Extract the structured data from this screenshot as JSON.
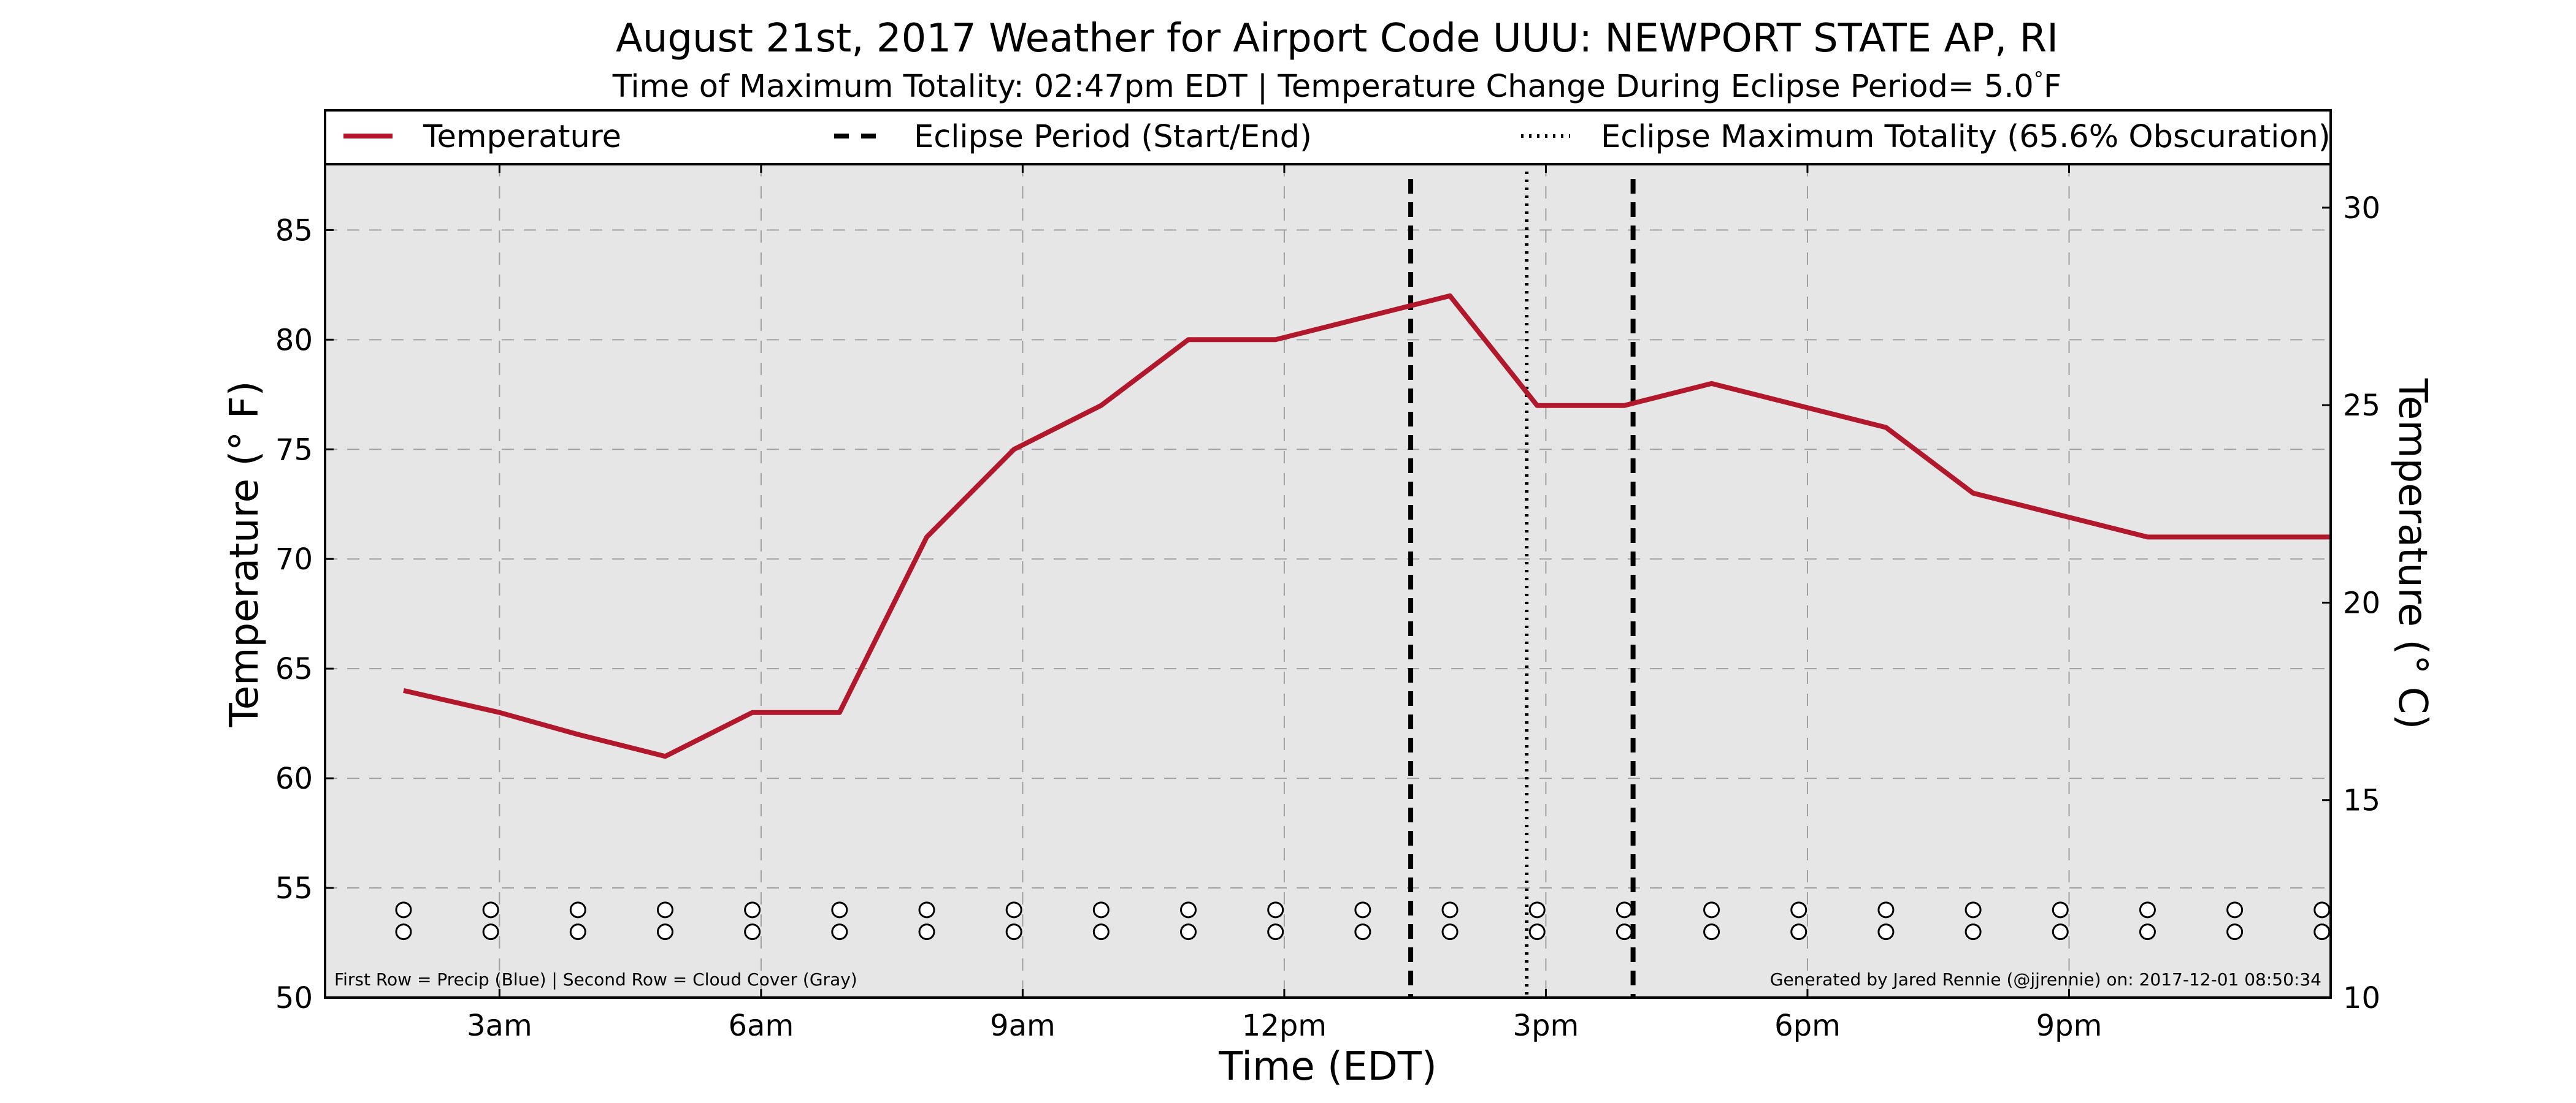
{
  "chart_data": {
    "type": "line",
    "title": "August 21st, 2017 Weather for Airport Code UUU: NEWPORT STATE AP, RI",
    "subtitle": "Time of Maximum Totality: 02:47pm EDT | Temperature Change During Eclipse Period= 5.0$^\\circ$F",
    "subtitle_parts": {
      "before": "Time of Maximum Totality: 02:47pm EDT | Temperature Change During Eclipse Period= 5.0",
      "degree": "°",
      "after": "F"
    },
    "xlabel": "Time (EDT)",
    "ylabel_left": "Temperature ($^\\circ$F)",
    "ylabel_left_display": "Temperature (° F)",
    "ylabel_right_display": "Temperature (° C)",
    "x_unit": "hours since 00:00 EDT, Aug 21 2017",
    "xlim": [
      0.0,
      23.0
    ],
    "ylim_left": [
      50,
      88
    ],
    "ylim_right": [
      10,
      31.1
    ],
    "x_ticks": [
      {
        "value": 2,
        "label": "3am"
      },
      {
        "value": 5,
        "label": "6am"
      },
      {
        "value": 8,
        "label": "9am"
      },
      {
        "value": 11,
        "label": "12pm"
      },
      {
        "value": 14,
        "label": "3pm"
      },
      {
        "value": 17,
        "label": "6pm"
      },
      {
        "value": 20,
        "label": "9pm"
      }
    ],
    "y_ticks_left": [
      50,
      55,
      60,
      65,
      70,
      75,
      80,
      85
    ],
    "y_ticks_right": [
      10,
      15,
      20,
      25,
      30
    ],
    "grid": true,
    "legend": {
      "placement": "top",
      "entries": [
        {
          "label": "Temperature",
          "style": "solid",
          "color": "#b2182b"
        },
        {
          "label": "Eclipse Period (Start/End)",
          "style": "dashed",
          "color": "#000000"
        },
        {
          "label": "Eclipse Maximum Totality (65.6% Obscuration)",
          "style": "dotted",
          "color": "#000000"
        }
      ]
    },
    "series": [
      {
        "name": "Temperature",
        "color": "#b2182b",
        "x": [
          0.9,
          2.0,
          2.9,
          3.9,
          4.9,
          5.9,
          6.9,
          7.9,
          8.9,
          9.9,
          10.9,
          11.9,
          12.9,
          13.9,
          14.9,
          15.9,
          16.9,
          17.9,
          18.9,
          19.9,
          20.9,
          21.9,
          23.0
        ],
        "y": [
          64,
          63,
          62,
          61,
          63,
          63,
          71,
          75,
          77,
          80,
          80,
          81,
          82,
          77,
          77,
          78,
          77,
          76,
          73,
          72,
          71,
          71,
          71
        ]
      }
    ],
    "eclipse_start_x": 12.45,
    "eclipse_end_x": 15.0,
    "eclipse_max_x": 13.78,
    "precip_row_y": 54,
    "cloud_row_y": 53,
    "marker_x": [
      0.9,
      1.9,
      2.9,
      3.9,
      4.9,
      5.9,
      6.9,
      7.9,
      8.9,
      9.9,
      10.9,
      11.9,
      12.9,
      13.9,
      14.9,
      15.9,
      16.9,
      17.9,
      18.9,
      19.9,
      20.9,
      21.9,
      22.9
    ],
    "footnote_left": "First Row = Precip (Blue) | Second Row = Cloud Cover (Gray)",
    "footnote_right": "Generated by Jared Rennie (@jjrennie) on: 2017-12-01 08:50:34",
    "colors": {
      "plot_background": "#e6e6e6",
      "temperature_line": "#b2182b",
      "grid": "#a0a0a0"
    }
  }
}
